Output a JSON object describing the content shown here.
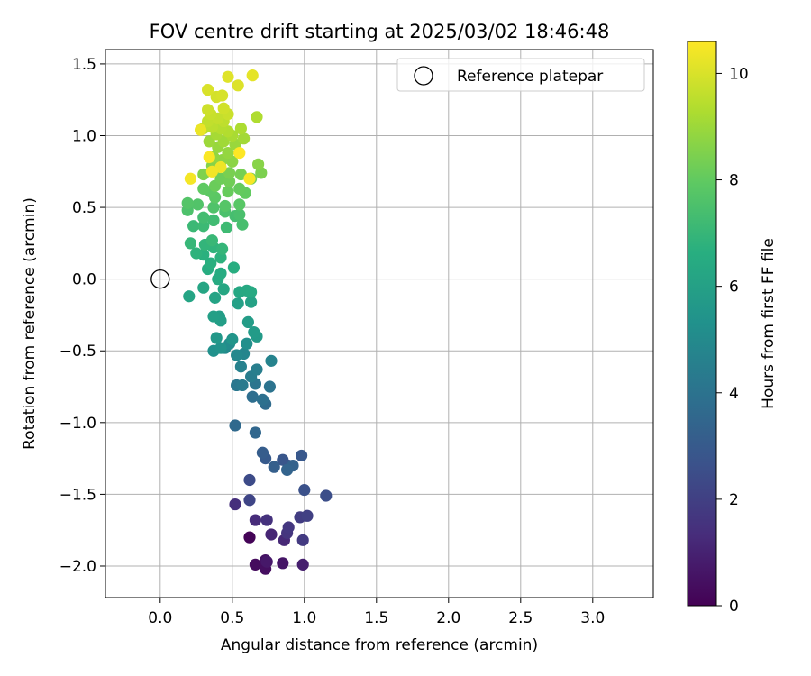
{
  "chart_data": {
    "type": "scatter",
    "title": "FOV centre drift starting at 2025/03/02 18:46:48",
    "xlabel": "Angular distance from reference (arcmin)",
    "ylabel": "Rotation from reference (arcmin)",
    "xlim": [
      -0.38,
      3.42
    ],
    "ylim": [
      -2.22,
      1.6
    ],
    "xticks": [
      0.0,
      0.5,
      1.0,
      1.5,
      2.0,
      2.5,
      3.0
    ],
    "xtick_labels": [
      "0.0",
      "0.5",
      "1.0",
      "1.5",
      "2.0",
      "2.5",
      "3.0"
    ],
    "yticks": [
      -2.0,
      -1.5,
      -1.0,
      -0.5,
      0.0,
      0.5,
      1.0,
      1.5
    ],
    "ytick_labels": [
      "−2.0",
      "−1.5",
      "−1.0",
      "−0.5",
      "0.0",
      "0.5",
      "1.0",
      "1.5"
    ],
    "grid": true,
    "legend": {
      "position": "upper right",
      "entries": [
        "Reference platepar"
      ]
    },
    "reference_point": {
      "x": 0.0,
      "y": 0.0,
      "label": "Reference platepar"
    },
    "colorbar": {
      "label": "Hours from first FF file",
      "range": [
        0,
        10.6
      ],
      "ticks": [
        0,
        2,
        4,
        6,
        8,
        10
      ],
      "tick_labels": [
        "0",
        "2",
        "4",
        "6",
        "8",
        "10"
      ],
      "colormap": "viridis"
    },
    "series": [
      {
        "points": [
          {
            "x": 0.62,
            "y": -1.8,
            "h": 0.1
          },
          {
            "x": 0.66,
            "y": -1.99,
            "h": 0.3
          },
          {
            "x": 0.73,
            "y": -2.02,
            "h": 0.4
          },
          {
            "x": 0.73,
            "y": -1.96,
            "h": 0.5
          },
          {
            "x": 0.85,
            "y": -1.98,
            "h": 0.6
          },
          {
            "x": 0.74,
            "y": -1.97,
            "h": 0.7
          },
          {
            "x": 0.99,
            "y": -1.99,
            "h": 0.9
          },
          {
            "x": 0.77,
            "y": -1.78,
            "h": 1.1
          },
          {
            "x": 0.86,
            "y": -1.82,
            "h": 1.2
          },
          {
            "x": 0.66,
            "y": -1.68,
            "h": 1.3
          },
          {
            "x": 0.52,
            "y": -1.57,
            "h": 1.4
          },
          {
            "x": 0.74,
            "y": -1.68,
            "h": 1.5
          },
          {
            "x": 0.88,
            "y": -1.77,
            "h": 1.6
          },
          {
            "x": 0.89,
            "y": -1.73,
            "h": 1.7
          },
          {
            "x": 0.99,
            "y": -1.82,
            "h": 1.8
          },
          {
            "x": 0.97,
            "y": -1.66,
            "h": 1.9
          },
          {
            "x": 1.02,
            "y": -1.65,
            "h": 2.0
          },
          {
            "x": 0.62,
            "y": -1.54,
            "h": 2.2
          },
          {
            "x": 0.62,
            "y": -1.4,
            "h": 2.4
          },
          {
            "x": 1.15,
            "y": -1.51,
            "h": 2.5
          },
          {
            "x": 1.0,
            "y": -1.47,
            "h": 2.6
          },
          {
            "x": 0.89,
            "y": -1.3,
            "h": 2.7
          },
          {
            "x": 0.85,
            "y": -1.26,
            "h": 2.8
          },
          {
            "x": 0.98,
            "y": -1.23,
            "h": 2.9
          },
          {
            "x": 0.73,
            "y": -1.25,
            "h": 3.0
          },
          {
            "x": 0.71,
            "y": -1.21,
            "h": 3.1
          },
          {
            "x": 0.79,
            "y": -1.31,
            "h": 3.2
          },
          {
            "x": 0.92,
            "y": -1.3,
            "h": 3.3
          },
          {
            "x": 0.88,
            "y": -1.33,
            "h": 3.4
          },
          {
            "x": 0.66,
            "y": -1.07,
            "h": 3.5
          },
          {
            "x": 0.52,
            "y": -1.02,
            "h": 3.6
          },
          {
            "x": 0.73,
            "y": -0.87,
            "h": 3.7
          },
          {
            "x": 0.64,
            "y": -0.82,
            "h": 3.8
          },
          {
            "x": 0.71,
            "y": -0.84,
            "h": 3.9
          },
          {
            "x": 0.76,
            "y": -0.75,
            "h": 4.0
          },
          {
            "x": 0.66,
            "y": -0.73,
            "h": 4.1
          },
          {
            "x": 0.53,
            "y": -0.74,
            "h": 4.2
          },
          {
            "x": 0.57,
            "y": -0.74,
            "h": 4.3
          },
          {
            "x": 0.63,
            "y": -0.68,
            "h": 4.4
          },
          {
            "x": 0.67,
            "y": -0.63,
            "h": 4.5
          },
          {
            "x": 0.56,
            "y": -0.61,
            "h": 4.6
          },
          {
            "x": 0.77,
            "y": -0.57,
            "h": 4.7
          },
          {
            "x": 0.58,
            "y": -0.52,
            "h": 4.8
          },
          {
            "x": 0.53,
            "y": -0.53,
            "h": 4.9
          },
          {
            "x": 0.45,
            "y": -0.48,
            "h": 5.0
          },
          {
            "x": 0.48,
            "y": -0.45,
            "h": 5.1
          },
          {
            "x": 0.6,
            "y": -0.45,
            "h": 5.2
          },
          {
            "x": 0.37,
            "y": -0.5,
            "h": 5.3
          },
          {
            "x": 0.42,
            "y": -0.48,
            "h": 5.4
          },
          {
            "x": 0.5,
            "y": -0.42,
            "h": 5.5
          },
          {
            "x": 0.39,
            "y": -0.41,
            "h": 5.6
          },
          {
            "x": 0.67,
            "y": -0.4,
            "h": 5.7
          },
          {
            "x": 0.65,
            "y": -0.37,
            "h": 5.75
          },
          {
            "x": 0.61,
            "y": -0.3,
            "h": 5.8
          },
          {
            "x": 0.41,
            "y": -0.26,
            "h": 5.85
          },
          {
            "x": 0.42,
            "y": -0.29,
            "h": 5.9
          },
          {
            "x": 0.37,
            "y": -0.26,
            "h": 5.95
          },
          {
            "x": 0.54,
            "y": -0.17,
            "h": 6.0
          },
          {
            "x": 0.63,
            "y": -0.16,
            "h": 6.05
          },
          {
            "x": 0.38,
            "y": -0.13,
            "h": 6.1
          },
          {
            "x": 0.2,
            "y": -0.12,
            "h": 6.15
          },
          {
            "x": 0.3,
            "y": -0.06,
            "h": 6.2
          },
          {
            "x": 0.44,
            "y": -0.07,
            "h": 6.25
          },
          {
            "x": 0.55,
            "y": -0.09,
            "h": 6.3
          },
          {
            "x": 0.6,
            "y": -0.08,
            "h": 6.35
          },
          {
            "x": 0.63,
            "y": -0.09,
            "h": 6.4
          },
          {
            "x": 0.4,
            "y": 0.0,
            "h": 6.45
          },
          {
            "x": 0.42,
            "y": 0.04,
            "h": 6.5
          },
          {
            "x": 0.33,
            "y": 0.07,
            "h": 6.55
          },
          {
            "x": 0.51,
            "y": 0.08,
            "h": 6.6
          },
          {
            "x": 0.35,
            "y": 0.11,
            "h": 6.65
          },
          {
            "x": 0.3,
            "y": 0.17,
            "h": 6.7
          },
          {
            "x": 0.42,
            "y": 0.15,
            "h": 6.75
          },
          {
            "x": 0.25,
            "y": 0.18,
            "h": 6.8
          },
          {
            "x": 0.37,
            "y": 0.22,
            "h": 6.85
          },
          {
            "x": 0.31,
            "y": 0.24,
            "h": 6.9
          },
          {
            "x": 0.43,
            "y": 0.21,
            "h": 6.95
          },
          {
            "x": 0.21,
            "y": 0.25,
            "h": 7.0
          },
          {
            "x": 0.36,
            "y": 0.27,
            "h": 7.05
          },
          {
            "x": 0.23,
            "y": 0.37,
            "h": 7.1
          },
          {
            "x": 0.3,
            "y": 0.37,
            "h": 7.15
          },
          {
            "x": 0.46,
            "y": 0.36,
            "h": 7.2
          },
          {
            "x": 0.37,
            "y": 0.41,
            "h": 7.25
          },
          {
            "x": 0.3,
            "y": 0.43,
            "h": 7.3
          },
          {
            "x": 0.52,
            "y": 0.44,
            "h": 7.35
          },
          {
            "x": 0.57,
            "y": 0.38,
            "h": 7.4
          },
          {
            "x": 0.55,
            "y": 0.45,
            "h": 7.45
          },
          {
            "x": 0.45,
            "y": 0.47,
            "h": 7.5
          },
          {
            "x": 0.19,
            "y": 0.48,
            "h": 7.55
          },
          {
            "x": 0.37,
            "y": 0.5,
            "h": 7.6
          },
          {
            "x": 0.26,
            "y": 0.52,
            "h": 7.65
          },
          {
            "x": 0.19,
            "y": 0.53,
            "h": 7.7
          },
          {
            "x": 0.45,
            "y": 0.51,
            "h": 7.75
          },
          {
            "x": 0.55,
            "y": 0.52,
            "h": 7.8
          },
          {
            "x": 0.38,
            "y": 0.57,
            "h": 7.85
          },
          {
            "x": 0.35,
            "y": 0.61,
            "h": 7.9
          },
          {
            "x": 0.3,
            "y": 0.63,
            "h": 7.95
          },
          {
            "x": 0.59,
            "y": 0.6,
            "h": 8.0
          },
          {
            "x": 0.55,
            "y": 0.63,
            "h": 8.05
          },
          {
            "x": 0.47,
            "y": 0.61,
            "h": 8.1
          },
          {
            "x": 0.38,
            "y": 0.65,
            "h": 8.15
          },
          {
            "x": 0.42,
            "y": 0.7,
            "h": 8.2
          },
          {
            "x": 0.48,
            "y": 0.68,
            "h": 8.25
          },
          {
            "x": 0.63,
            "y": 0.7,
            "h": 8.3
          },
          {
            "x": 0.56,
            "y": 0.73,
            "h": 8.35
          },
          {
            "x": 0.48,
            "y": 0.74,
            "h": 8.4
          },
          {
            "x": 0.7,
            "y": 0.74,
            "h": 8.45
          },
          {
            "x": 0.3,
            "y": 0.73,
            "h": 8.5
          },
          {
            "x": 0.38,
            "y": 0.77,
            "h": 8.55
          },
          {
            "x": 0.36,
            "y": 0.79,
            "h": 8.6
          },
          {
            "x": 0.68,
            "y": 0.8,
            "h": 8.65
          },
          {
            "x": 0.5,
            "y": 0.82,
            "h": 8.7
          },
          {
            "x": 0.43,
            "y": 0.83,
            "h": 8.75
          },
          {
            "x": 0.37,
            "y": 0.85,
            "h": 8.8
          },
          {
            "x": 0.47,
            "y": 0.88,
            "h": 8.85
          },
          {
            "x": 0.4,
            "y": 0.92,
            "h": 8.9
          },
          {
            "x": 0.52,
            "y": 0.94,
            "h": 8.95
          },
          {
            "x": 0.34,
            "y": 0.96,
            "h": 9.0
          },
          {
            "x": 0.44,
            "y": 0.96,
            "h": 9.05
          },
          {
            "x": 0.58,
            "y": 0.98,
            "h": 9.1
          },
          {
            "x": 0.39,
            "y": 1.01,
            "h": 9.15
          },
          {
            "x": 0.5,
            "y": 1.0,
            "h": 9.2
          },
          {
            "x": 0.56,
            "y": 1.05,
            "h": 9.25
          },
          {
            "x": 0.67,
            "y": 1.13,
            "h": 9.3
          },
          {
            "x": 0.47,
            "y": 1.03,
            "h": 9.35
          },
          {
            "x": 0.42,
            "y": 1.05,
            "h": 9.4
          },
          {
            "x": 0.3,
            "y": 1.05,
            "h": 9.45
          },
          {
            "x": 0.36,
            "y": 1.06,
            "h": 9.5
          },
          {
            "x": 0.44,
            "y": 1.1,
            "h": 9.55
          },
          {
            "x": 0.33,
            "y": 1.1,
            "h": 9.6
          },
          {
            "x": 0.4,
            "y": 1.12,
            "h": 9.65
          },
          {
            "x": 0.35,
            "y": 1.15,
            "h": 9.7
          },
          {
            "x": 0.47,
            "y": 1.15,
            "h": 9.75
          },
          {
            "x": 0.33,
            "y": 1.18,
            "h": 9.8
          },
          {
            "x": 0.44,
            "y": 1.19,
            "h": 9.85
          },
          {
            "x": 0.39,
            "y": 1.27,
            "h": 9.9
          },
          {
            "x": 0.43,
            "y": 1.28,
            "h": 9.95
          },
          {
            "x": 0.33,
            "y": 1.32,
            "h": 10.0
          },
          {
            "x": 0.54,
            "y": 1.35,
            "h": 10.05
          },
          {
            "x": 0.47,
            "y": 1.41,
            "h": 10.1
          },
          {
            "x": 0.64,
            "y": 1.42,
            "h": 10.2
          },
          {
            "x": 0.28,
            "y": 1.04,
            "h": 10.3
          },
          {
            "x": 0.42,
            "y": 0.78,
            "h": 10.35
          },
          {
            "x": 0.36,
            "y": 0.75,
            "h": 10.4
          },
          {
            "x": 0.21,
            "y": 0.7,
            "h": 10.45
          },
          {
            "x": 0.62,
            "y": 0.7,
            "h": 10.5
          },
          {
            "x": 0.34,
            "y": 0.85,
            "h": 10.55
          },
          {
            "x": 0.55,
            "y": 0.88,
            "h": 10.6
          }
        ]
      }
    ]
  }
}
